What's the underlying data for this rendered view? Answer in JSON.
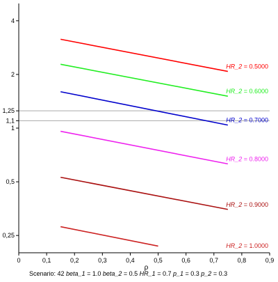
{
  "chart_data": {
    "type": "line",
    "xlabel": "ρ",
    "ylabel": "",
    "title": "",
    "xlim": [
      0,
      0.9
    ],
    "ylim": [
      0.2,
      5
    ],
    "yscale": "log",
    "grid": false,
    "x_ticks": [
      {
        "value": 0,
        "label": "0"
      },
      {
        "value": 0.1,
        "label": "0,1"
      },
      {
        "value": 0.2,
        "label": "0,2"
      },
      {
        "value": 0.3,
        "label": "0,3"
      },
      {
        "value": 0.4,
        "label": "0,4"
      },
      {
        "value": 0.5,
        "label": "0,5"
      },
      {
        "value": 0.6,
        "label": "0,6"
      },
      {
        "value": 0.7,
        "label": "0,7"
      },
      {
        "value": 0.8,
        "label": "0,8"
      },
      {
        "value": 0.9,
        "label": "0,9"
      }
    ],
    "y_ticks": [
      {
        "value": 0.25,
        "label": "0,25"
      },
      {
        "value": 0.5,
        "label": "0,5"
      },
      {
        "value": 1,
        "label": "1"
      },
      {
        "value": 1.1,
        "label": "1,1"
      },
      {
        "value": 1.25,
        "label": "1,25"
      },
      {
        "value": 2,
        "label": "2"
      },
      {
        "value": 4,
        "label": "4"
      }
    ],
    "reference_lines": [
      {
        "y": 1.25,
        "color": "#aaaaaa"
      },
      {
        "y": 1.1,
        "color": "#aaaaaa"
      }
    ],
    "series": [
      {
        "name_prefix": "HR_2",
        "name_value": "= 0.5000",
        "color": "#ff0000",
        "x": [
          0.15,
          0.75
        ],
        "y": [
          3.15,
          2.08
        ]
      },
      {
        "name_prefix": "HR_2",
        "name_value": "= 0.6000",
        "color": "#22ee22",
        "x": [
          0.15,
          0.75
        ],
        "y": [
          2.28,
          1.51
        ]
      },
      {
        "name_prefix": "HR_2",
        "name_value": "= 0.7000",
        "color": "#0000cc",
        "x": [
          0.15,
          0.75
        ],
        "y": [
          1.6,
          1.04
        ]
      },
      {
        "name_prefix": "HR_2",
        "name_value": "= 0.8000",
        "color": "#ee22ee",
        "x": [
          0.15,
          0.75
        ],
        "y": [
          0.96,
          0.63
        ]
      },
      {
        "name_prefix": "HR_2",
        "name_value": "= 0.9000",
        "color": "#aa1111",
        "x": [
          0.15,
          0.75
        ],
        "y": [
          0.53,
          0.35
        ]
      },
      {
        "name_prefix": "HR_2",
        "name_value": "= 1.0000",
        "color": "#cc2222",
        "x": [
          0.15,
          0.5
        ],
        "y": [
          0.28,
          0.218
        ]
      }
    ],
    "footer": {
      "scenario": "Scenario: 42",
      "params": [
        {
          "name": "beta_1",
          "value": "= 1.0"
        },
        {
          "name": "beta_2",
          "value": "= 0.5"
        },
        {
          "name": "HR_1",
          "value": "= 0.7"
        },
        {
          "name": "p_1",
          "value": "= 0.3"
        },
        {
          "name": "p_2",
          "value": "= 0.3"
        }
      ]
    }
  }
}
